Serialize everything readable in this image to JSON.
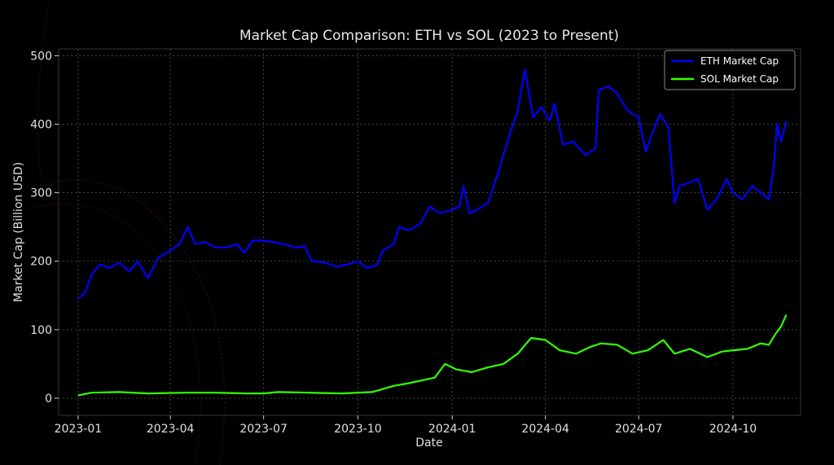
{
  "chart_data": {
    "type": "line",
    "title": "Market Cap Comparison: ETH vs SOL (2023 to Present)",
    "xlabel": "Date",
    "ylabel": "Market Cap (Billion USD)",
    "x_ticks": [
      "2023-01",
      "2023-04",
      "2023-07",
      "2023-10",
      "2024-01",
      "2024-04",
      "2024-07",
      "2024-10"
    ],
    "y_ticks": [
      0,
      100,
      200,
      300,
      400,
      500
    ],
    "xlim": [
      "2022-12-13",
      "2024-12-06"
    ],
    "ylim": [
      -25,
      510
    ],
    "grid": true,
    "legend_position": "top-right",
    "series": [
      {
        "name": "ETH Market Cap",
        "color": "#0000ff",
        "points": [
          [
            "2023-01-01",
            145
          ],
          [
            "2023-01-08",
            155
          ],
          [
            "2023-01-14",
            180
          ],
          [
            "2023-01-22",
            195
          ],
          [
            "2023-02-01",
            190
          ],
          [
            "2023-02-10",
            198
          ],
          [
            "2023-02-20",
            185
          ],
          [
            "2023-02-28",
            200
          ],
          [
            "2023-03-10",
            175
          ],
          [
            "2023-03-20",
            205
          ],
          [
            "2023-03-31",
            215
          ],
          [
            "2023-04-10",
            225
          ],
          [
            "2023-04-18",
            250
          ],
          [
            "2023-04-25",
            225
          ],
          [
            "2023-05-05",
            228
          ],
          [
            "2023-05-15",
            220
          ],
          [
            "2023-05-25",
            220
          ],
          [
            "2023-06-05",
            225
          ],
          [
            "2023-06-12",
            212
          ],
          [
            "2023-06-20",
            230
          ],
          [
            "2023-07-01",
            230
          ],
          [
            "2023-07-10",
            228
          ],
          [
            "2023-07-20",
            225
          ],
          [
            "2023-08-01",
            220
          ],
          [
            "2023-08-10",
            222
          ],
          [
            "2023-08-17",
            200
          ],
          [
            "2023-08-30",
            198
          ],
          [
            "2023-09-10",
            192
          ],
          [
            "2023-09-20",
            195
          ],
          [
            "2023-10-01",
            200
          ],
          [
            "2023-10-10",
            190
          ],
          [
            "2023-10-20",
            195
          ],
          [
            "2023-10-25",
            215
          ],
          [
            "2023-11-05",
            225
          ],
          [
            "2023-11-10",
            250
          ],
          [
            "2023-11-20",
            245
          ],
          [
            "2023-12-01",
            255
          ],
          [
            "2023-12-10",
            280
          ],
          [
            "2023-12-20",
            270
          ],
          [
            "2024-01-01",
            275
          ],
          [
            "2024-01-08",
            280
          ],
          [
            "2024-01-12",
            310
          ],
          [
            "2024-01-18",
            270
          ],
          [
            "2024-01-25",
            275
          ],
          [
            "2024-02-05",
            285
          ],
          [
            "2024-02-15",
            330
          ],
          [
            "2024-02-25",
            380
          ],
          [
            "2024-03-05",
            420
          ],
          [
            "2024-03-12",
            480
          ],
          [
            "2024-03-20",
            410
          ],
          [
            "2024-03-28",
            425
          ],
          [
            "2024-04-05",
            405
          ],
          [
            "2024-04-10",
            430
          ],
          [
            "2024-04-18",
            370
          ],
          [
            "2024-04-28",
            375
          ],
          [
            "2024-05-10",
            355
          ],
          [
            "2024-05-20",
            365
          ],
          [
            "2024-05-23",
            450
          ],
          [
            "2024-06-01",
            455
          ],
          [
            "2024-06-10",
            445
          ],
          [
            "2024-06-20",
            420
          ],
          [
            "2024-07-01",
            410
          ],
          [
            "2024-07-08",
            360
          ],
          [
            "2024-07-15",
            390
          ],
          [
            "2024-07-22",
            415
          ],
          [
            "2024-07-30",
            395
          ],
          [
            "2024-08-05",
            285
          ],
          [
            "2024-08-10",
            310
          ],
          [
            "2024-08-20",
            315
          ],
          [
            "2024-08-28",
            320
          ],
          [
            "2024-09-06",
            275
          ],
          [
            "2024-09-15",
            290
          ],
          [
            "2024-09-25",
            320
          ],
          [
            "2024-10-01",
            300
          ],
          [
            "2024-10-10",
            290
          ],
          [
            "2024-10-20",
            310
          ],
          [
            "2024-10-28",
            300
          ],
          [
            "2024-11-05",
            290
          ],
          [
            "2024-11-10",
            340
          ],
          [
            "2024-11-13",
            400
          ],
          [
            "2024-11-17",
            375
          ],
          [
            "2024-11-22",
            405
          ]
        ]
      },
      {
        "name": "SOL Market Cap",
        "color": "#33ff00",
        "points": [
          [
            "2023-01-01",
            4
          ],
          [
            "2023-01-14",
            8
          ],
          [
            "2023-02-10",
            9
          ],
          [
            "2023-03-10",
            7
          ],
          [
            "2023-04-15",
            8
          ],
          [
            "2023-05-15",
            8
          ],
          [
            "2023-06-15",
            7
          ],
          [
            "2023-07-01",
            7
          ],
          [
            "2023-07-15",
            9
          ],
          [
            "2023-08-15",
            8
          ],
          [
            "2023-09-15",
            7
          ],
          [
            "2023-10-15",
            9
          ],
          [
            "2023-11-05",
            18
          ],
          [
            "2023-11-20",
            22
          ],
          [
            "2023-12-15",
            30
          ],
          [
            "2023-12-25",
            50
          ],
          [
            "2024-01-05",
            42
          ],
          [
            "2024-01-20",
            38
          ],
          [
            "2024-02-05",
            45
          ],
          [
            "2024-02-20",
            50
          ],
          [
            "2024-03-05",
            65
          ],
          [
            "2024-03-18",
            88
          ],
          [
            "2024-04-01",
            85
          ],
          [
            "2024-04-15",
            70
          ],
          [
            "2024-05-01",
            65
          ],
          [
            "2024-05-15",
            75
          ],
          [
            "2024-05-25",
            80
          ],
          [
            "2024-06-10",
            78
          ],
          [
            "2024-06-25",
            65
          ],
          [
            "2024-07-10",
            70
          ],
          [
            "2024-07-25",
            85
          ],
          [
            "2024-08-05",
            65
          ],
          [
            "2024-08-20",
            72
          ],
          [
            "2024-09-06",
            60
          ],
          [
            "2024-09-20",
            68
          ],
          [
            "2024-10-01",
            70
          ],
          [
            "2024-10-15",
            72
          ],
          [
            "2024-10-28",
            80
          ],
          [
            "2024-11-05",
            78
          ],
          [
            "2024-11-12",
            95
          ],
          [
            "2024-11-17",
            105
          ],
          [
            "2024-11-22",
            122
          ]
        ]
      }
    ]
  }
}
